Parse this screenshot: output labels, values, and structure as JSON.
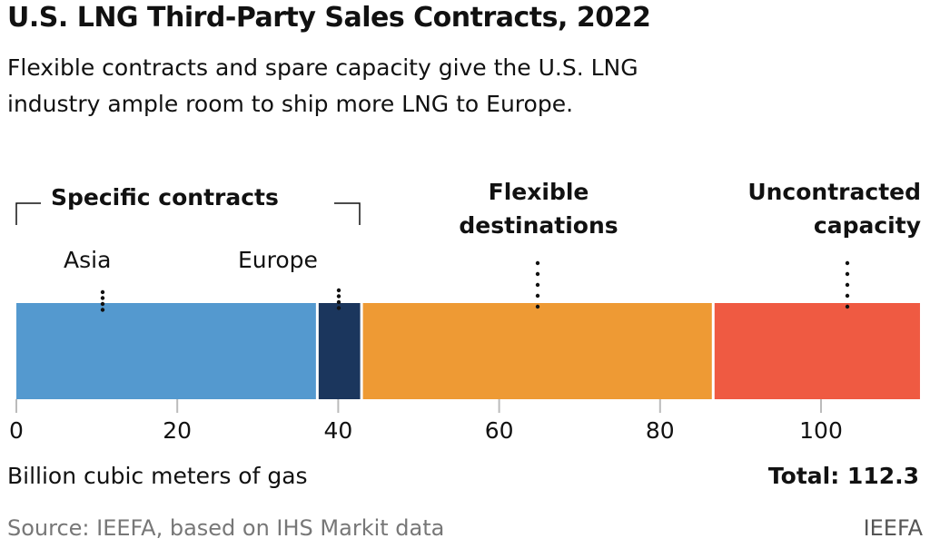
{
  "title": "U.S. LNG Third-Party Sales Contracts, 2022",
  "subtitle": [
    "Flexible contracts and spare capacity give the U.S. LNG",
    "industry ample room to ship more LNG to Europe."
  ],
  "group_label": "Specific contracts",
  "source": "Source: IEEFA, based on IHS Markit data",
  "brand": "IEEFA",
  "chart_data": {
    "type": "bar",
    "orientation": "horizontal-stacked",
    "categories": [
      "Asia",
      "Europe",
      "Flexible destinations",
      "Uncontracted capacity"
    ],
    "values": [
      37.4,
      5.5,
      43.7,
      25.7
    ],
    "colors": [
      "#5499cf",
      "#1b365d",
      "#ee9a34",
      "#ef5a42"
    ],
    "xlabel": "Billion cubic meters of gas",
    "xlim": [
      0,
      112.3
    ],
    "xticks": [
      "0",
      "20",
      "40",
      "60",
      "80",
      "100"
    ],
    "total_label": "Total: 112.3",
    "grid": false
  }
}
